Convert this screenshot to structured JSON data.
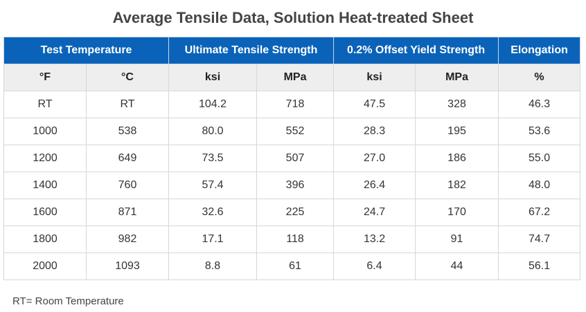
{
  "title": "Average Tensile Data, Solution Heat-treated Sheet",
  "table": {
    "group_headers": [
      {
        "label": "Test Temperature",
        "span": 2
      },
      {
        "label": "Ultimate Tensile Strength",
        "span": 2
      },
      {
        "label": "0.2% Offset Yield Strength",
        "span": 2
      },
      {
        "label": "Elongation",
        "span": 1
      }
    ],
    "unit_headers": [
      "°F",
      "°C",
      "ksi",
      "MPa",
      "ksi",
      "MPa",
      "%"
    ],
    "rows": [
      [
        "RT",
        "RT",
        "104.2",
        "718",
        "47.5",
        "328",
        "46.3"
      ],
      [
        "1000",
        "538",
        "80.0",
        "552",
        "28.3",
        "195",
        "53.6"
      ],
      [
        "1200",
        "649",
        "73.5",
        "507",
        "27.0",
        "186",
        "55.0"
      ],
      [
        "1400",
        "760",
        "57.4",
        "396",
        "26.4",
        "182",
        "48.0"
      ],
      [
        "1600",
        "871",
        "32.6",
        "225",
        "24.7",
        "170",
        "67.2"
      ],
      [
        "1800",
        "982",
        "17.1",
        "118",
        "13.2",
        "91",
        "74.7"
      ],
      [
        "2000",
        "1093",
        "8.8",
        "61",
        "6.4",
        "44",
        "56.1"
      ]
    ]
  },
  "footnote": "RT= Room Temperature",
  "colors": {
    "header_background": "#0a63b8",
    "header_text": "#ffffff",
    "subheader_background": "#eeeeee",
    "border": "#d6d6d6"
  }
}
